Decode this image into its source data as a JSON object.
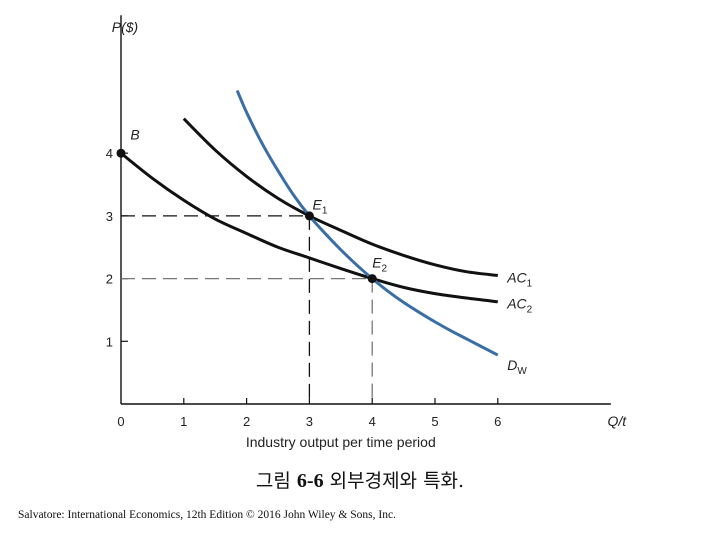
{
  "chart_data": {
    "type": "line",
    "xlabel": "Industry output per time period",
    "ylabel": "P($)",
    "x_axis_end_label": "Q/t",
    "x_ticks": [
      "0",
      "1",
      "2",
      "3",
      "4",
      "5",
      "6"
    ],
    "y_ticks": [
      "1",
      "2",
      "3",
      "4"
    ],
    "xlim": [
      0,
      7.8
    ],
    "ylim": [
      0,
      6.2
    ],
    "grid": false,
    "series": [
      {
        "name": "AC1",
        "color": "#111111",
        "x": [
          1.0,
          1.5,
          2.0,
          2.5,
          3.0,
          3.5,
          4.0,
          4.5,
          5.0,
          5.5,
          6.0
        ],
        "y": [
          4.55,
          4.05,
          3.63,
          3.28,
          3.0,
          2.77,
          2.55,
          2.37,
          2.22,
          2.11,
          2.05
        ]
      },
      {
        "name": "AC2",
        "color": "#111111",
        "x": [
          0.0,
          0.5,
          1.0,
          1.5,
          2.0,
          2.5,
          3.0,
          3.5,
          4.0,
          4.5,
          5.0,
          5.5,
          6.0
        ],
        "y": [
          4.0,
          3.6,
          3.25,
          2.95,
          2.72,
          2.5,
          2.33,
          2.16,
          2.0,
          1.86,
          1.76,
          1.69,
          1.63
        ]
      },
      {
        "name": "DW",
        "color": "#3a6ea5",
        "x": [
          1.85,
          2.0,
          2.25,
          2.5,
          2.75,
          3.0,
          3.25,
          3.5,
          3.75,
          4.0,
          4.25,
          4.5,
          4.75,
          5.0,
          5.25,
          5.5,
          6.0
        ],
        "y": [
          5.0,
          4.65,
          4.15,
          3.72,
          3.33,
          3.0,
          2.72,
          2.46,
          2.22,
          2.0,
          1.8,
          1.62,
          1.46,
          1.31,
          1.17,
          1.04,
          0.78
        ]
      }
    ],
    "series_labels": [
      {
        "text": "AC",
        "sub": "1",
        "x": 6.15,
        "y": 2.02
      },
      {
        "text": "AC",
        "sub": "2",
        "x": 6.15,
        "y": 1.6
      },
      {
        "text": "D",
        "sub": "W",
        "x": 6.15,
        "y": 0.62
      }
    ],
    "points": [
      {
        "label": "B",
        "sub": "",
        "x": 0,
        "y": 4,
        "lx": 0.15,
        "ly": 4.22
      },
      {
        "label": "E",
        "sub": "1",
        "x": 3,
        "y": 3,
        "lx": 3.05,
        "ly": 3.1
      },
      {
        "label": "E",
        "sub": "2",
        "x": 4,
        "y": 2,
        "lx": 4.0,
        "ly": 2.18
      }
    ],
    "reference_lines": [
      {
        "x": 3,
        "y": 3,
        "style": "dashed",
        "color": "#111111"
      },
      {
        "x": 4,
        "y": 2,
        "style": "dashed",
        "color": "#777777"
      }
    ]
  },
  "caption": {
    "korean_prefix": "그림",
    "figure_number": "6-6",
    "title": "외부경제와 특화."
  },
  "credit": "Salvatore: International Economics, 12th Edition © 2016 John Wiley & Sons, Inc."
}
